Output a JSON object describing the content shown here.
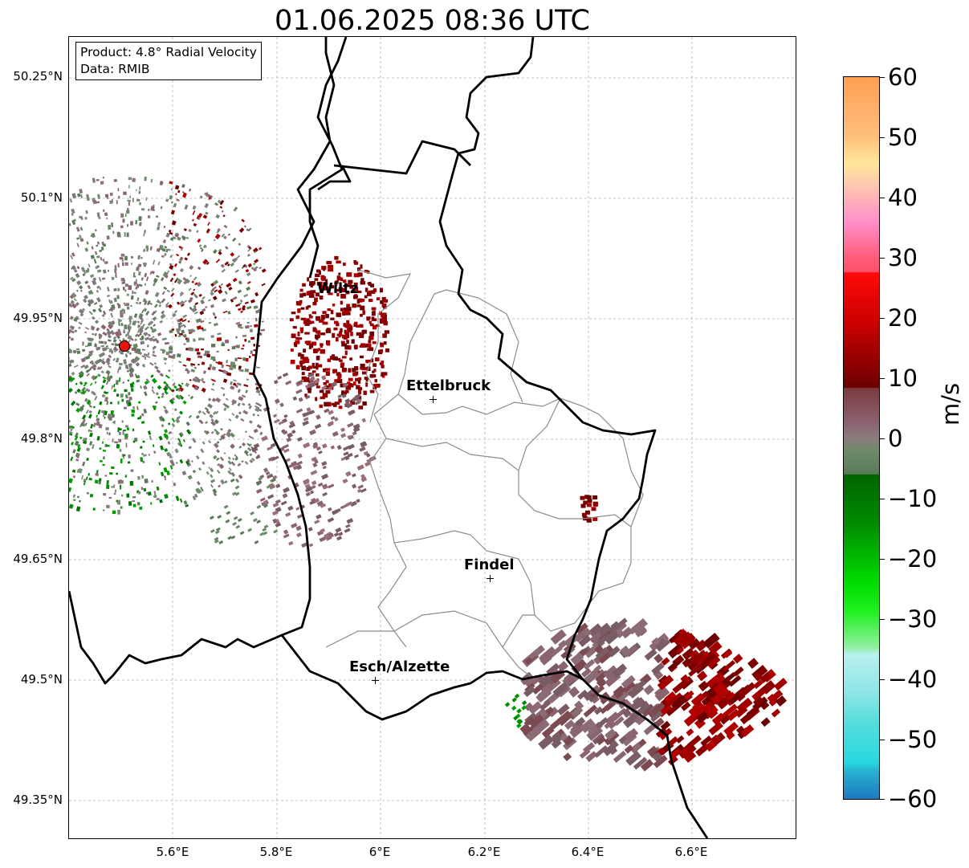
{
  "title": "01.06.2025 08:36 UTC",
  "info": {
    "product": "Product: 4.8° Radial Velocity",
    "source": "Data: RMIB"
  },
  "axes": {
    "lat_labels": [
      "50.25°N",
      "50.1°N",
      "49.95°N",
      "49.8°N",
      "49.65°N",
      "49.5°N",
      "49.35°N"
    ],
    "lon_labels": [
      "5.6°E",
      "5.8°E",
      "6°E",
      "6.2°E",
      "6.4°E",
      "6.6°E"
    ]
  },
  "cities": [
    {
      "name": "Wiltz"
    },
    {
      "name": "Ettelbruck"
    },
    {
      "name": "Findel"
    },
    {
      "name": "Esch/Alzette"
    }
  ],
  "colorbar": {
    "unit": "m/s",
    "tick_labels": [
      "60",
      "50",
      "40",
      "30",
      "20",
      "10",
      "0",
      "−10",
      "−20",
      "−30",
      "−40",
      "−50",
      "−60"
    ],
    "range": [
      -60,
      60
    ]
  },
  "colors": {
    "border": "#000000",
    "canton_lines": "#8c8c8c",
    "grid": "#b4b4b4",
    "radar_site": "#e8140a"
  }
}
